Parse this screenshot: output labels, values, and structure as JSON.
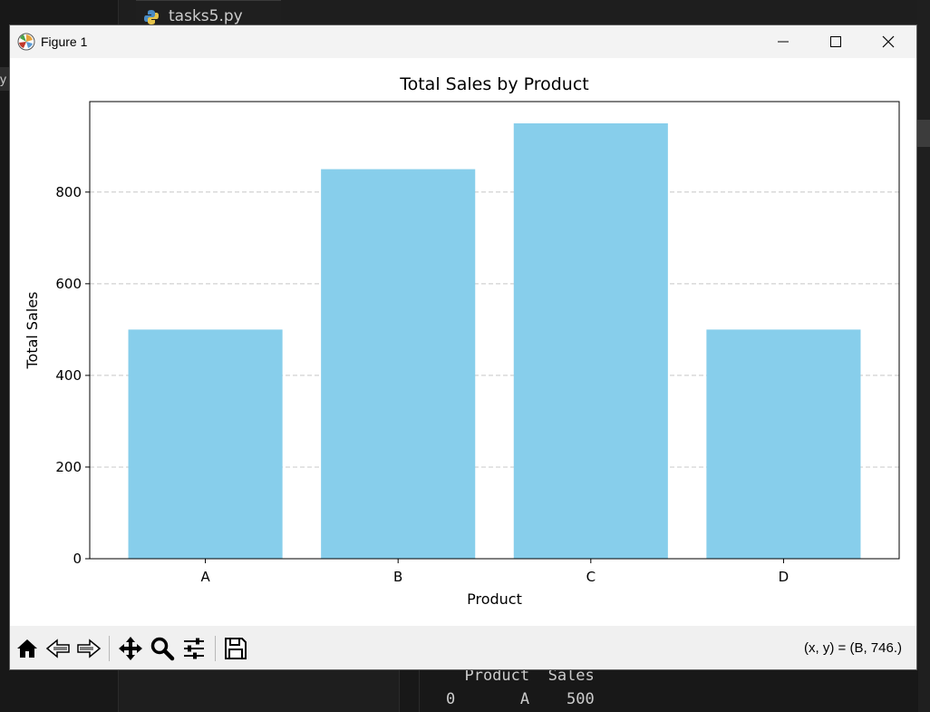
{
  "editor": {
    "tab_label": "tasks5.py",
    "terminal_header": "  Product  Sales",
    "terminal_row": "0       A    500"
  },
  "window": {
    "title": "Figure 1",
    "controls": [
      "minimize-icon",
      "maximize-icon",
      "close-icon"
    ]
  },
  "toolbar": {
    "buttons": [
      "home-icon",
      "back-icon",
      "forward-icon",
      "pan-icon",
      "zoom-icon",
      "configure-subplots-icon",
      "save-icon"
    ],
    "coord_readout": "(x, y) = (B, 746.)"
  },
  "chart_data": {
    "type": "bar",
    "title": "Total Sales by Product",
    "xlabel": "Product",
    "ylabel": "Total Sales",
    "categories": [
      "A",
      "B",
      "C",
      "D"
    ],
    "values": [
      500,
      850,
      950,
      500
    ],
    "ylim": [
      0,
      997.5
    ],
    "yticks": [
      0,
      200,
      400,
      600,
      800
    ],
    "bar_color": "#87CEEB",
    "grid": "y-dashed",
    "grid_color": "#c8c8c8"
  }
}
